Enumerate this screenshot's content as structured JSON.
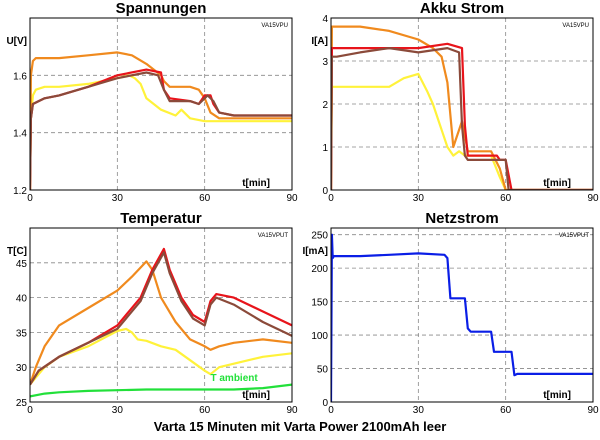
{
  "caption": "Varta 15 Minuten mit Varta Power 2100mAh leer",
  "colors": {
    "red": "#e8141b",
    "brown": "#8b4a3a",
    "orange": "#f08a1e",
    "yellow": "#fff23a",
    "green": "#22e03a",
    "blue": "#0a1ee6"
  },
  "chart_data": [
    {
      "type": "line",
      "title": "Spannungen",
      "ylabel": "U[V]",
      "xlabel": "t[min]",
      "tag": "VA15VPU",
      "xlim": [
        0,
        90
      ],
      "ylim": [
        1.2,
        1.8
      ],
      "xticks": [
        "0",
        "30",
        "60",
        "90"
      ],
      "yticks": [
        "1.2",
        "1.4",
        "1.6"
      ],
      "xtick_values": [
        0,
        30,
        60,
        90
      ],
      "ytick_values": [
        1.2,
        1.4,
        1.6
      ],
      "grid": true,
      "series": [
        {
          "color": "yellow",
          "x": [
            0,
            0.3,
            1,
            2,
            5,
            10,
            20,
            30,
            34,
            36,
            38,
            40,
            45,
            50,
            52,
            55,
            60,
            65,
            70,
            80,
            90
          ],
          "y": [
            1.2,
            1.45,
            1.53,
            1.55,
            1.56,
            1.56,
            1.57,
            1.59,
            1.6,
            1.59,
            1.57,
            1.52,
            1.48,
            1.46,
            1.48,
            1.45,
            1.44,
            1.44,
            1.44,
            1.44,
            1.44
          ]
        },
        {
          "color": "orange",
          "x": [
            0,
            0.3,
            1,
            2,
            5,
            10,
            20,
            30,
            35,
            40,
            45,
            46,
            48,
            55,
            58,
            60,
            62,
            65,
            70,
            80,
            90
          ],
          "y": [
            1.2,
            1.6,
            1.65,
            1.66,
            1.66,
            1.66,
            1.67,
            1.68,
            1.67,
            1.64,
            1.6,
            1.58,
            1.56,
            1.56,
            1.55,
            1.52,
            1.47,
            1.45,
            1.45,
            1.45,
            1.45
          ]
        },
        {
          "color": "red",
          "x": [
            0,
            0.3,
            1,
            3,
            5,
            10,
            20,
            30,
            40,
            45,
            46,
            48,
            55,
            58,
            60,
            62,
            63,
            65,
            70,
            80,
            90
          ],
          "y": [
            1.2,
            1.45,
            1.5,
            1.51,
            1.52,
            1.53,
            1.56,
            1.6,
            1.62,
            1.61,
            1.55,
            1.52,
            1.51,
            1.5,
            1.53,
            1.53,
            1.5,
            1.47,
            1.46,
            1.46,
            1.46
          ]
        },
        {
          "color": "brown",
          "x": [
            0,
            0.3,
            1,
            3,
            5,
            10,
            20,
            30,
            40,
            44,
            46,
            48,
            55,
            58,
            60,
            61,
            63,
            65,
            70,
            80,
            90
          ],
          "y": [
            1.2,
            1.45,
            1.5,
            1.51,
            1.52,
            1.53,
            1.56,
            1.59,
            1.61,
            1.6,
            1.55,
            1.51,
            1.51,
            1.5,
            1.52,
            1.53,
            1.51,
            1.47,
            1.46,
            1.46,
            1.46
          ]
        }
      ]
    },
    {
      "type": "line",
      "title": "Akku Strom",
      "ylabel": "I[A]",
      "xlabel": "t[min]",
      "tag": "VA15VPU",
      "xlim": [
        0,
        90
      ],
      "ylim": [
        0,
        4
      ],
      "xticks": [
        "0",
        "30",
        "60",
        "90"
      ],
      "yticks": [
        "0",
        "1",
        "2",
        "3",
        "4"
      ],
      "xtick_values": [
        0,
        30,
        60,
        90
      ],
      "ytick_values": [
        0,
        1,
        2,
        3,
        4
      ],
      "grid": true,
      "series": [
        {
          "color": "yellow",
          "x": [
            0,
            0.3,
            2,
            10,
            20,
            25,
            30,
            33,
            35,
            38,
            40,
            42,
            44,
            46,
            50,
            55,
            58,
            60,
            62,
            70,
            80,
            90
          ],
          "y": [
            0,
            2.4,
            2.4,
            2.4,
            2.4,
            2.6,
            2.7,
            2.3,
            2.0,
            1.4,
            1.0,
            0.8,
            0.9,
            0.8,
            0.8,
            0.8,
            0.3,
            0.0,
            0.0,
            0.0,
            0.0,
            0.0
          ]
        },
        {
          "color": "orange",
          "x": [
            0,
            0.3,
            2,
            10,
            20,
            30,
            35,
            38,
            40,
            42,
            45,
            47,
            50,
            55,
            58,
            60,
            62,
            70,
            80,
            90
          ],
          "y": [
            0,
            3.8,
            3.8,
            3.8,
            3.7,
            3.5,
            3.3,
            3.1,
            2.5,
            1.0,
            1.6,
            0.9,
            0.9,
            0.9,
            0.5,
            0.0,
            0.0,
            0.0,
            0.0,
            0.0
          ]
        },
        {
          "color": "red",
          "x": [
            0,
            0.3,
            2,
            10,
            20,
            30,
            40,
            45,
            46,
            47,
            50,
            55,
            57,
            58,
            60,
            62,
            64,
            70,
            80,
            90
          ],
          "y": [
            0,
            3.3,
            3.3,
            3.3,
            3.3,
            3.3,
            3.4,
            3.3,
            1.5,
            0.8,
            0.8,
            0.8,
            0.8,
            0.7,
            0.7,
            0.0,
            0.0,
            0.0,
            0.0,
            0.0
          ]
        },
        {
          "color": "brown",
          "x": [
            0,
            0.3,
            2,
            10,
            20,
            30,
            40,
            44,
            45,
            46,
            47,
            50,
            55,
            57,
            58,
            60,
            61,
            64,
            70,
            80,
            90
          ],
          "y": [
            0,
            3.1,
            3.1,
            3.2,
            3.3,
            3.2,
            3.3,
            3.2,
            1.5,
            0.8,
            0.7,
            0.7,
            0.7,
            0.7,
            0.7,
            0.7,
            0.0,
            0.0,
            0.0,
            0.0,
            0.0
          ]
        }
      ]
    },
    {
      "type": "line",
      "title": "Temperatur",
      "ylabel": "T[C]",
      "xlabel": "t[min]",
      "tag": "VA15VPUT",
      "annotation": "T ambient",
      "annotation_color": "green",
      "xlim": [
        0,
        90
      ],
      "ylim": [
        25,
        50
      ],
      "xticks": [
        "0",
        "30",
        "60",
        "90"
      ],
      "yticks": [
        "25",
        "30",
        "35",
        "40",
        "45"
      ],
      "xtick_values": [
        0,
        30,
        60,
        90
      ],
      "ytick_values": [
        25,
        30,
        35,
        40,
        45
      ],
      "grid": true,
      "series": [
        {
          "color": "green",
          "x": [
            0,
            5,
            10,
            20,
            30,
            40,
            50,
            60,
            70,
            80,
            90
          ],
          "y": [
            25.8,
            26.2,
            26.4,
            26.6,
            26.7,
            26.8,
            26.8,
            26.8,
            26.8,
            27.0,
            27.5
          ]
        },
        {
          "color": "yellow",
          "x": [
            0,
            2,
            5,
            10,
            20,
            30,
            33,
            35,
            37,
            40,
            45,
            50,
            55,
            60,
            62,
            65,
            70,
            80,
            90
          ],
          "y": [
            27.5,
            28.5,
            30.0,
            31.5,
            33.0,
            35.2,
            35.5,
            35.0,
            34.0,
            33.8,
            33.0,
            32.5,
            31.0,
            29.5,
            29.0,
            30.0,
            30.5,
            31.5,
            32.0
          ]
        },
        {
          "color": "orange",
          "x": [
            0,
            2,
            5,
            10,
            20,
            30,
            35,
            40,
            42,
            45,
            50,
            55,
            60,
            62,
            65,
            70,
            80,
            90
          ],
          "y": [
            27.5,
            30.0,
            33.0,
            36.0,
            38.5,
            41.0,
            43.0,
            45.2,
            44.0,
            40.0,
            36.5,
            34.0,
            33.0,
            32.5,
            33.0,
            33.5,
            34.0,
            33.5
          ]
        },
        {
          "color": "red",
          "x": [
            0,
            3,
            10,
            20,
            30,
            38,
            42,
            46,
            48,
            52,
            56,
            60,
            62,
            64,
            70,
            80,
            90
          ],
          "y": [
            27.5,
            29.5,
            31.5,
            33.5,
            36.0,
            40.0,
            44.0,
            47.0,
            44.0,
            40.0,
            37.5,
            36.5,
            39.5,
            40.5,
            40.0,
            38.0,
            36.0
          ]
        },
        {
          "color": "brown",
          "x": [
            0,
            3,
            10,
            20,
            30,
            38,
            42,
            46,
            48,
            52,
            56,
            60,
            62,
            64,
            70,
            80,
            90
          ],
          "y": [
            27.5,
            29.5,
            31.5,
            33.5,
            35.5,
            39.5,
            43.5,
            46.5,
            43.5,
            39.5,
            37.0,
            36.0,
            39.0,
            40.0,
            39.0,
            36.5,
            34.5
          ]
        }
      ]
    },
    {
      "type": "line",
      "title": "Netzstrom",
      "ylabel": "I[mA]",
      "xlabel": "t[min]",
      "tag": "VA15VPUT",
      "xlim": [
        0,
        90
      ],
      "ylim": [
        0,
        260
      ],
      "xticks": [
        "0",
        "30",
        "60",
        "90"
      ],
      "yticks": [
        "0",
        "50",
        "100",
        "150",
        "200",
        "250"
      ],
      "xtick_values": [
        0,
        30,
        60,
        90
      ],
      "ytick_values": [
        0,
        50,
        100,
        150,
        200,
        250
      ],
      "grid": true,
      "series": [
        {
          "color": "blue",
          "x": [
            0,
            0.3,
            0.6,
            1,
            10,
            20,
            30,
            39,
            40,
            41,
            46,
            47,
            48,
            55,
            56,
            57,
            62,
            63,
            64,
            70,
            80,
            90
          ],
          "y": [
            0,
            250,
            215,
            218,
            218,
            220,
            222,
            220,
            215,
            155,
            155,
            110,
            105,
            105,
            75,
            75,
            75,
            40,
            42,
            42,
            42,
            42
          ]
        }
      ]
    }
  ]
}
